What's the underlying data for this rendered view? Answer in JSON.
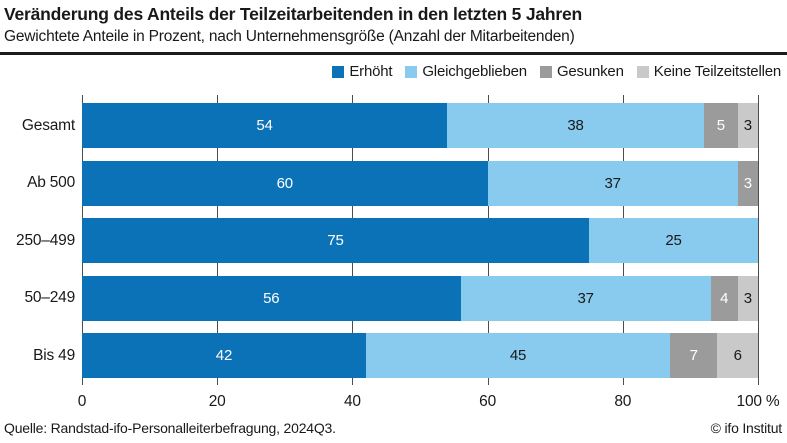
{
  "title": "Veränderung des Anteils der Teilzeitarbeitenden in den letzten 5 Jahren",
  "subtitle": "Gewichtete Anteile in Prozent, nach Unternehmensgröße (Anzahl der Mitarbeitenden)",
  "colors": {
    "erhoeht": "#0c72b7",
    "gleichgeblieben": "#89cbef",
    "gesunken": "#9b9b9b",
    "keine_teilzeitstellen": "#c9c9c9",
    "text": "#191919",
    "gridline": "#4d4d4d"
  },
  "legend": [
    {
      "key": "erhoeht",
      "label": "Erhöht",
      "color": "#0c72b7"
    },
    {
      "key": "gleichgeblieben",
      "label": "Gleichgeblieben",
      "color": "#89cbef"
    },
    {
      "key": "gesunken",
      "label": "Gesunken",
      "color": "#9b9b9b"
    },
    {
      "key": "keine-teilzeitstellen",
      "label": "Keine Teilzeitstellen",
      "color": "#c9c9c9"
    }
  ],
  "chart_data": {
    "type": "bar",
    "orientation": "horizontal",
    "stacked": true,
    "categories": [
      "Gesamt",
      "Ab 500",
      "250–499",
      "50–249",
      "Bis 49"
    ],
    "series": [
      {
        "key": "erhoeht",
        "name": "Erhöht",
        "color": "#0c72b7",
        "text_color": "#ffffff",
        "values": [
          54,
          60,
          75,
          56,
          42
        ]
      },
      {
        "key": "gleichgeblieben",
        "name": "Gleichgeblieben",
        "color": "#89cbef",
        "text_color": "#191919",
        "values": [
          38,
          37,
          25,
          37,
          45
        ]
      },
      {
        "key": "gesunken",
        "name": "Gesunken",
        "color": "#9b9b9b",
        "text_color": "#ffffff",
        "values": [
          5,
          3,
          0,
          4,
          7
        ]
      },
      {
        "key": "keine-teilzeitstellen",
        "name": "Keine Teilzeitstellen",
        "color": "#c9c9c9",
        "text_color": "#191919",
        "values": [
          3,
          0,
          0,
          3,
          6
        ]
      }
    ],
    "xlim": [
      0,
      100
    ],
    "xticks": [
      0,
      20,
      40,
      60,
      80,
      100
    ],
    "xtick_labels": [
      "0",
      "20",
      "40",
      "60",
      "80",
      "100 %"
    ],
    "grid": "vertical",
    "legend_position": "top-right",
    "title": "Veränderung des Anteils der Teilzeitarbeitenden in den letzten 5 Jahren",
    "xlabel": "",
    "ylabel": ""
  },
  "footer": {
    "source": "Quelle: Randstad-ifo-Personalleiterbefragung, 2024Q3.",
    "copyright": "© ifo Institut"
  }
}
